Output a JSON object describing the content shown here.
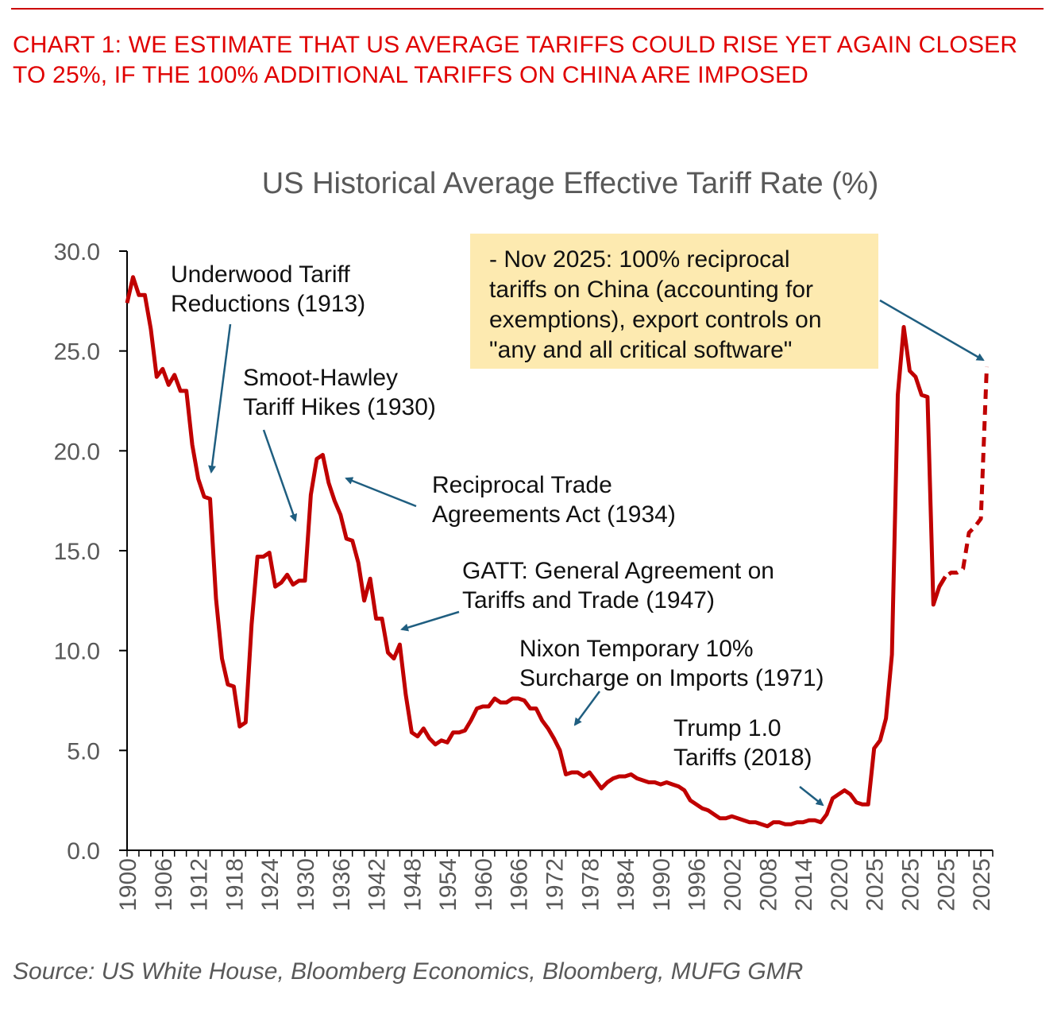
{
  "header": {
    "title": "CHART 1: WE ESTIMATE THAT US AVERAGE TARIFFS COULD RISE YET AGAIN CLOSER TO 25%, IF THE 100% ADDITIONAL TARIFFS ON CHINA ARE IMPOSED"
  },
  "source": "Source: US White House, Bloomberg Economics, Bloomberg, MUFG GMR",
  "colors": {
    "header_red": "#e00000",
    "series_red": "#c00000",
    "arrow_blue": "#1f5e80",
    "callout_fill": "#fdeab0",
    "axis_text": "#595959"
  },
  "chart_data": {
    "type": "line",
    "title": "US Historical Average Effective Tariff Rate (%)",
    "xlabel": "",
    "ylabel": "",
    "ylim": [
      0,
      30
    ],
    "y_ticks": [
      "0.0",
      "5.0",
      "10.0",
      "15.0",
      "20.0",
      "25.0",
      "30.0"
    ],
    "x_tick_labels": [
      "1900",
      "1906",
      "1912",
      "1918",
      "1924",
      "1930",
      "1936",
      "1942",
      "1948",
      "1954",
      "1960",
      "1966",
      "1972",
      "1978",
      "1984",
      "1990",
      "1996",
      "2002",
      "2008",
      "2014",
      "2020",
      "2025",
      "2025",
      "2025",
      "2025"
    ],
    "grid": false,
    "legend": "none",
    "series": [
      {
        "style": "solid",
        "color": "#c00000",
        "values": [
          27.4,
          28.7,
          27.8,
          27.8,
          26.1,
          23.7,
          24.1,
          23.3,
          23.8,
          23.0,
          23.0,
          20.3,
          18.6,
          17.7,
          17.6,
          12.6,
          9.6,
          8.3,
          8.2,
          6.2,
          6.4,
          11.3,
          14.7,
          14.7,
          14.9,
          13.2,
          13.4,
          13.8,
          13.3,
          13.5,
          13.5,
          17.8,
          19.6,
          19.8,
          18.4,
          17.5,
          16.8,
          15.6,
          15.5,
          14.4,
          12.5,
          13.6,
          11.6,
          11.6,
          9.9,
          9.6,
          10.3,
          7.8,
          5.9,
          5.7,
          6.1,
          5.6,
          5.3,
          5.5,
          5.4,
          5.9,
          5.9,
          6.0,
          6.5,
          7.1,
          7.2,
          7.2,
          7.6,
          7.4,
          7.4,
          7.6,
          7.6,
          7.5,
          7.1,
          7.1,
          6.5,
          6.1,
          5.6,
          5.0,
          3.8,
          3.9,
          3.9,
          3.7,
          3.9,
          3.5,
          3.1,
          3.4,
          3.6,
          3.7,
          3.7,
          3.8,
          3.6,
          3.5,
          3.4,
          3.4,
          3.3,
          3.4,
          3.3,
          3.2,
          3.0,
          2.5,
          2.3,
          2.1,
          2.0,
          1.8,
          1.6,
          1.6,
          1.7,
          1.6,
          1.5,
          1.4,
          1.4,
          1.3,
          1.2,
          1.4,
          1.4,
          1.3,
          1.3,
          1.4,
          1.4,
          1.5,
          1.5,
          1.4,
          1.8,
          2.6,
          2.8,
          3.0,
          2.8,
          2.4,
          2.3,
          2.3,
          5.1,
          5.5,
          6.6,
          9.8,
          22.8,
          26.2,
          24.0,
          23.7,
          22.8,
          22.7,
          12.3,
          13.2,
          13.7
        ]
      },
      {
        "style": "dashed",
        "color": "#c00000",
        "values": [
          13.2,
          13.7,
          13.9,
          13.9,
          14.1,
          15.9,
          16.2,
          16.6,
          24.2
        ]
      }
    ],
    "series_x_start": [
      0,
      137
    ]
  },
  "annotations": {
    "underwood": "Underwood Tariff\nReductions (1913)",
    "smoot": "Smoot-Hawley\nTariff Hikes (1930)",
    "reciprocal": "Reciprocal Trade\nAgreements Act (1934)",
    "gatt": "GATT: General Agreement on\nTariffs and Trade (1947)",
    "nixon": "Nixon Temporary 10%\nSurcharge on Imports (1971)",
    "trump": "Trump 1.0\nTariffs (2018)",
    "nov2025": "- Nov 2025: 100% reciprocal\ntariffs on China (accounting for\nexemptions), export controls on\n\"any and all critical software\""
  }
}
